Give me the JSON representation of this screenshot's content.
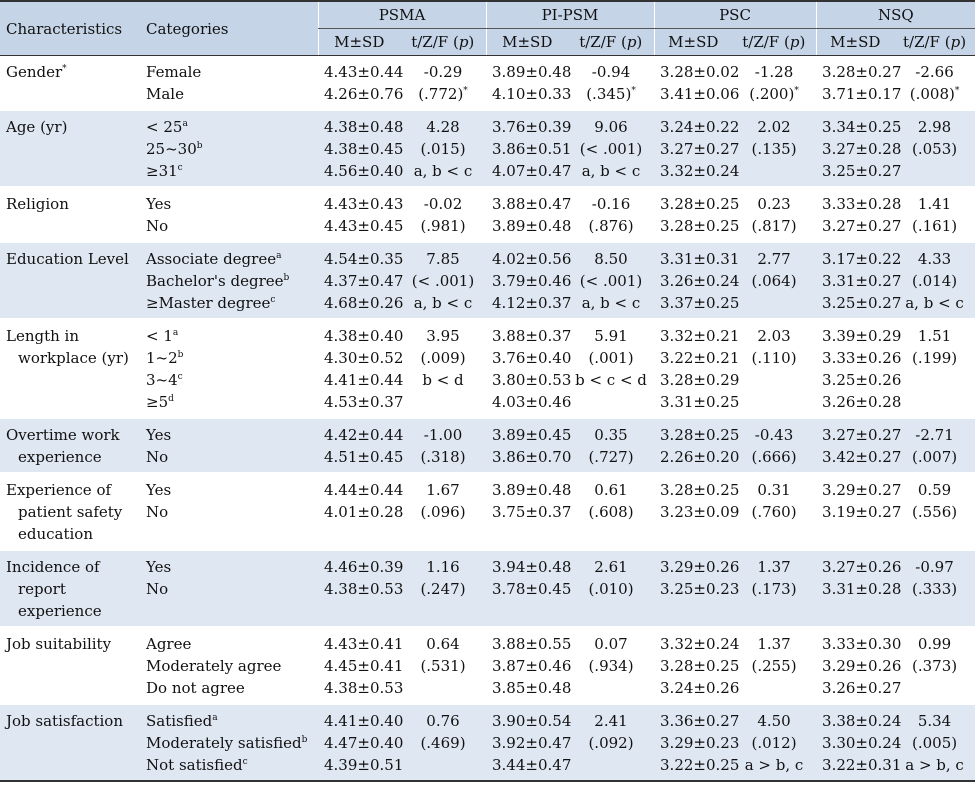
{
  "headers": {
    "characteristics": "Characteristics",
    "categories": "Categories",
    "groups": [
      "PSMA",
      "PI-PSM",
      "PSC",
      "NSQ"
    ],
    "msd": "M±SD",
    "stat": "t/Z/F (p)"
  },
  "rows": [
    {
      "char_lines": [
        "Gender"
      ],
      "char_sup": "*",
      "cats": [
        {
          "t": "Female",
          "s": ""
        },
        {
          "t": "Male",
          "s": ""
        }
      ],
      "cols": [
        {
          "msd": [
            "4.43±0.44",
            "4.26±0.76"
          ],
          "stat": [
            "-0.29",
            "(.772)"
          ],
          "stat_sup": "*"
        },
        {
          "msd": [
            "3.89±0.48",
            "4.10±0.33"
          ],
          "stat": [
            "-0.94",
            "(.345)"
          ],
          "stat_sup": "*"
        },
        {
          "msd": [
            "3.28±0.02",
            "3.41±0.06"
          ],
          "stat": [
            "-1.28",
            "(.200)"
          ],
          "stat_sup": "*"
        },
        {
          "msd": [
            "3.28±0.27",
            "3.71±0.17"
          ],
          "stat": [
            "-2.66",
            "(.008)"
          ],
          "stat_sup": "*"
        }
      ]
    },
    {
      "char_lines": [
        "Age (yr)"
      ],
      "char_sup": "",
      "cats": [
        {
          "t": "< 25",
          "s": "a"
        },
        {
          "t": "25~30",
          "s": "b"
        },
        {
          "t": "≥31",
          "s": "c"
        }
      ],
      "cols": [
        {
          "msd": [
            "4.38±0.48",
            "4.38±0.45",
            "4.56±0.40"
          ],
          "stat": [
            "4.28",
            "(.015)",
            "a, b < c"
          ],
          "stat_sup": ""
        },
        {
          "msd": [
            "3.76±0.39",
            "3.86±0.51",
            "4.07±0.47"
          ],
          "stat": [
            "9.06",
            "(< .001)",
            "a, b < c"
          ],
          "stat_sup": ""
        },
        {
          "msd": [
            "3.24±0.22",
            "3.27±0.27",
            "3.32±0.24"
          ],
          "stat": [
            "2.02",
            "(.135)"
          ],
          "stat_sup": ""
        },
        {
          "msd": [
            "3.34±0.25",
            "3.27±0.28",
            "3.25±0.27"
          ],
          "stat": [
            "2.98",
            "(.053)"
          ],
          "stat_sup": ""
        }
      ]
    },
    {
      "char_lines": [
        "Religion"
      ],
      "char_sup": "",
      "cats": [
        {
          "t": "Yes",
          "s": ""
        },
        {
          "t": "No",
          "s": ""
        }
      ],
      "cols": [
        {
          "msd": [
            "4.43±0.43",
            "4.43±0.45"
          ],
          "stat": [
            "-0.02",
            "(.981)"
          ],
          "stat_sup": ""
        },
        {
          "msd": [
            "3.88±0.47",
            "3.89±0.48"
          ],
          "stat": [
            "-0.16",
            "(.876)"
          ],
          "stat_sup": ""
        },
        {
          "msd": [
            "3.28±0.25",
            "3.28±0.25"
          ],
          "stat": [
            "0.23",
            "(.817)"
          ],
          "stat_sup": ""
        },
        {
          "msd": [
            "3.33±0.28",
            "3.27±0.27"
          ],
          "stat": [
            "1.41",
            "(.161)"
          ],
          "stat_sup": ""
        }
      ]
    },
    {
      "char_lines": [
        "Education Level"
      ],
      "char_sup": "",
      "cats": [
        {
          "t": "Associate degree",
          "s": "a"
        },
        {
          "t": "Bachelor's degree",
          "s": "b"
        },
        {
          "t": "≥Master degree",
          "s": "c"
        }
      ],
      "cols": [
        {
          "msd": [
            "4.54±0.35",
            "4.37±0.47",
            "4.68±0.26"
          ],
          "stat": [
            "7.85",
            "(< .001)",
            "a, b < c"
          ],
          "stat_sup": ""
        },
        {
          "msd": [
            "4.02±0.56",
            "3.79±0.46",
            "4.12±0.37"
          ],
          "stat": [
            "8.50",
            "(< .001)",
            "a, b < c"
          ],
          "stat_sup": ""
        },
        {
          "msd": [
            "3.31±0.31",
            "3.26±0.24",
            "3.37±0.25"
          ],
          "stat": [
            "2.77",
            "(.064)"
          ],
          "stat_sup": ""
        },
        {
          "msd": [
            "3.17±0.22",
            "3.31±0.27",
            "3.25±0.27"
          ],
          "stat": [
            "4.33",
            "(.014)",
            "a, b < c"
          ],
          "stat_sup": ""
        }
      ]
    },
    {
      "char_lines": [
        "Length in",
        "workplace (yr)"
      ],
      "char_sup": "",
      "cats": [
        {
          "t": "< 1",
          "s": "a"
        },
        {
          "t": "1~2",
          "s": "b"
        },
        {
          "t": "3~4",
          "s": "c"
        },
        {
          "t": "≥5",
          "s": "d"
        }
      ],
      "cols": [
        {
          "msd": [
            "4.38±0.40",
            "4.30±0.52",
            "4.41±0.44",
            "4.53±0.37"
          ],
          "stat": [
            "3.95",
            "(.009)",
            "b < d"
          ],
          "stat_sup": ""
        },
        {
          "msd": [
            "3.88±0.37",
            "3.76±0.40",
            "3.80±0.53",
            "4.03±0.46"
          ],
          "stat": [
            "5.91",
            "(.001)",
            "b < c < d"
          ],
          "stat_sup": ""
        },
        {
          "msd": [
            "3.32±0.21",
            "3.22±0.21",
            "3.28±0.29",
            "3.31±0.25"
          ],
          "stat": [
            "2.03",
            "(.110)"
          ],
          "stat_sup": ""
        },
        {
          "msd": [
            "3.39±0.29",
            "3.33±0.26",
            "3.25±0.26",
            "3.26±0.28"
          ],
          "stat": [
            "1.51",
            "(.199)"
          ],
          "stat_sup": ""
        }
      ]
    },
    {
      "char_lines": [
        "Overtime work",
        "experience"
      ],
      "char_sup": "",
      "cats": [
        {
          "t": "Yes",
          "s": ""
        },
        {
          "t": "No",
          "s": ""
        }
      ],
      "cols": [
        {
          "msd": [
            "4.42±0.44",
            "4.51±0.45"
          ],
          "stat": [
            "-1.00",
            "(.318)"
          ],
          "stat_sup": ""
        },
        {
          "msd": [
            "3.89±0.45",
            "3.86±0.70"
          ],
          "stat": [
            "0.35",
            "(.727)"
          ],
          "stat_sup": ""
        },
        {
          "msd": [
            "3.28±0.25",
            "2.26±0.20"
          ],
          "stat": [
            "-0.43",
            "(.666)"
          ],
          "stat_sup": ""
        },
        {
          "msd": [
            "3.27±0.27",
            "3.42±0.27"
          ],
          "stat": [
            "-2.71",
            "(.007)"
          ],
          "stat_sup": ""
        }
      ]
    },
    {
      "char_lines": [
        "Experience of",
        "patient safety",
        "education"
      ],
      "char_sup": "",
      "cats": [
        {
          "t": "Yes",
          "s": ""
        },
        {
          "t": "No",
          "s": ""
        }
      ],
      "cols": [
        {
          "msd": [
            "4.44±0.44",
            "4.01±0.28"
          ],
          "stat": [
            "1.67",
            "(.096)"
          ],
          "stat_sup": ""
        },
        {
          "msd": [
            "3.89±0.48",
            "3.75±0.37"
          ],
          "stat": [
            "0.61",
            "(.608)"
          ],
          "stat_sup": ""
        },
        {
          "msd": [
            "3.28±0.25",
            "3.23±0.09"
          ],
          "stat": [
            "0.31",
            "(.760)"
          ],
          "stat_sup": ""
        },
        {
          "msd": [
            "3.29±0.27",
            "3.19±0.27"
          ],
          "stat": [
            "0.59",
            "(.556)"
          ],
          "stat_sup": ""
        }
      ]
    },
    {
      "char_lines": [
        "Incidence of",
        "report",
        "experience"
      ],
      "char_sup": "",
      "cats": [
        {
          "t": "Yes",
          "s": ""
        },
        {
          "t": "No",
          "s": ""
        }
      ],
      "cols": [
        {
          "msd": [
            "4.46±0.39",
            "4.38±0.53"
          ],
          "stat": [
            "1.16",
            "(.247)"
          ],
          "stat_sup": ""
        },
        {
          "msd": [
            "3.94±0.48",
            "3.78±0.45"
          ],
          "stat": [
            "2.61",
            "(.010)"
          ],
          "stat_sup": ""
        },
        {
          "msd": [
            "3.29±0.26",
            "3.25±0.23"
          ],
          "stat": [
            "1.37",
            "(.173)"
          ],
          "stat_sup": ""
        },
        {
          "msd": [
            "3.27±0.26",
            "3.31±0.28"
          ],
          "stat": [
            "-0.97",
            "(.333)"
          ],
          "stat_sup": ""
        }
      ]
    },
    {
      "char_lines": [
        "Job suitability"
      ],
      "char_sup": "",
      "cats": [
        {
          "t": "Agree",
          "s": ""
        },
        {
          "t": "Moderately agree",
          "s": ""
        },
        {
          "t": "Do not agree",
          "s": ""
        }
      ],
      "cols": [
        {
          "msd": [
            "4.43±0.41",
            "4.45±0.41",
            "4.38±0.53"
          ],
          "stat": [
            "0.64",
            "(.531)"
          ],
          "stat_sup": ""
        },
        {
          "msd": [
            "3.88±0.55",
            "3.87±0.46",
            "3.85±0.48"
          ],
          "stat": [
            "0.07",
            "(.934)"
          ],
          "stat_sup": ""
        },
        {
          "msd": [
            "3.32±0.24",
            "3.28±0.25",
            "3.24±0.26"
          ],
          "stat": [
            "1.37",
            "(.255)"
          ],
          "stat_sup": ""
        },
        {
          "msd": [
            "3.33±0.30",
            "3.29±0.26",
            "3.26±0.27"
          ],
          "stat": [
            "0.99",
            "(.373)"
          ],
          "stat_sup": ""
        }
      ]
    },
    {
      "char_lines": [
        "Job satisfaction"
      ],
      "char_sup": "",
      "cats": [
        {
          "t": "Satisfied",
          "s": "a"
        },
        {
          "t": "Moderately satisfied",
          "s": "b"
        },
        {
          "t": "Not satisfied",
          "s": "c"
        }
      ],
      "cols": [
        {
          "msd": [
            "4.41±0.40",
            "4.47±0.40",
            "4.39±0.51"
          ],
          "stat": [
            "0.76",
            "(.469)"
          ],
          "stat_sup": ""
        },
        {
          "msd": [
            "3.90±0.54",
            "3.92±0.47",
            "3.44±0.47"
          ],
          "stat": [
            "2.41",
            "(.092)"
          ],
          "stat_sup": ""
        },
        {
          "msd": [
            "3.36±0.27",
            "3.29±0.23",
            "3.22±0.25"
          ],
          "stat": [
            "4.50",
            "(.012)",
            "a > b, c"
          ],
          "stat_sup": ""
        },
        {
          "msd": [
            "3.38±0.24",
            "3.30±0.24",
            "3.22±0.31"
          ],
          "stat": [
            "5.34",
            "(.005)",
            "a > b, c"
          ],
          "stat_sup": ""
        }
      ]
    }
  ]
}
